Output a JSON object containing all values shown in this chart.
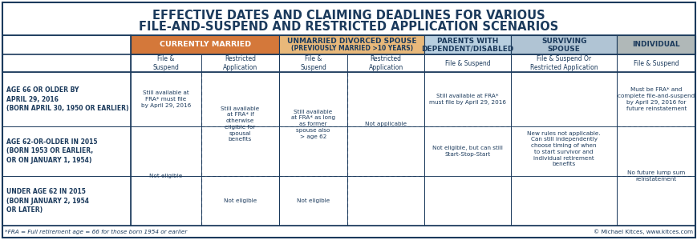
{
  "title_line1": "EFFECTIVE DATES AND CLAIMING DEADLINES FOR VARIOUS",
  "title_line2": "FILE-AND-SUSPEND AND RESTRICTED APPLICATION SCENARIOS",
  "title_color": "#1b3a5c",
  "title_fontsize": 10.5,
  "background_color": "#ffffff",
  "border_color": "#1b3a5c",
  "grid_color": "#1b3a5c",
  "cell_text_color": "#1b3a5c",
  "col_header_colors": {
    "currently_married": "#d4783a",
    "divorced_spouse": "#e8b87a",
    "parents": "#b8cfe0",
    "surviving": "#b0c4d4",
    "individual": "#b0b8b8"
  },
  "footnote": "*FRA = Full retirement age = 66 for those born 1954 or earlier",
  "copyright": "© Michael Kitces, www.kitces.com"
}
